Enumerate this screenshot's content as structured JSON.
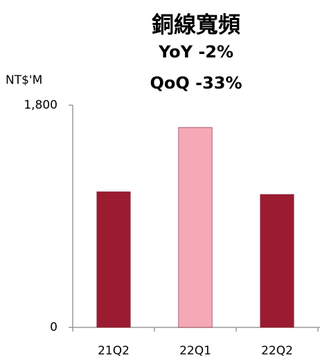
{
  "chart_data": {
    "type": "bar",
    "title": "銅線寬頻",
    "annotations": [
      "YoY -2%",
      "QoQ -33%"
    ],
    "y_label": "NT$'M",
    "categories": [
      "21Q2",
      "22Q1",
      "22Q2"
    ],
    "values": [
      1099,
      1620,
      1077
    ],
    "colors": [
      "#9b1c31",
      "#f5a9b6",
      "#9b1c31"
    ],
    "ylim": [
      0,
      1800
    ],
    "yticks": [
      0,
      {
        "value": 1800,
        "label": "1,800"
      }
    ],
    "grid": false
  }
}
